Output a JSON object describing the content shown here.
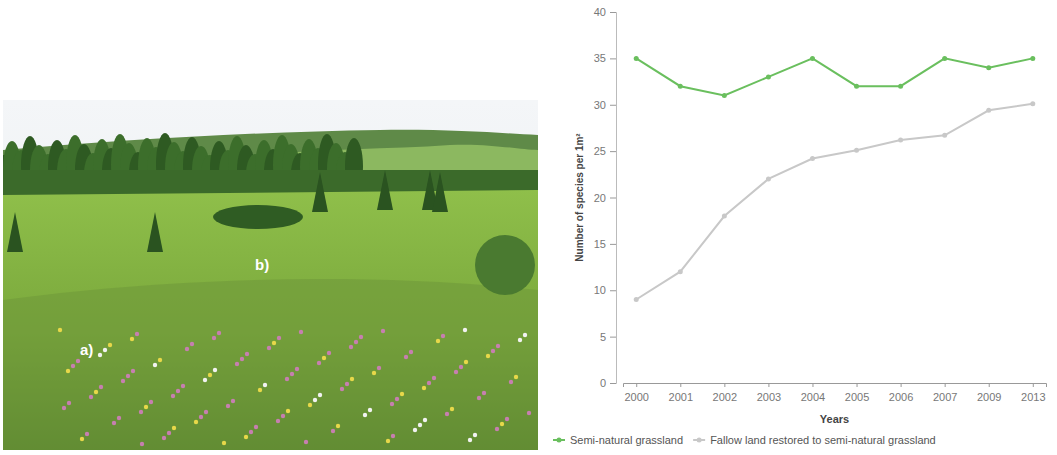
{
  "photo_labels": [
    "a)",
    "b)"
  ],
  "chart_data": {
    "type": "line",
    "x_label": "Years",
    "y_label": "Number of species per 1m²",
    "categories": [
      "2000",
      "2001",
      "2002",
      "2003",
      "2004",
      "2005",
      "2006",
      "2007",
      "2009",
      "2013"
    ],
    "series": [
      {
        "name": "Semi-natural grassland",
        "color": "#6abf5e",
        "marker": "circle",
        "values": [
          35,
          32,
          31,
          33,
          35,
          32,
          32,
          35,
          34,
          35
        ]
      },
      {
        "name": "Fallow land restored to semi-natural grassland",
        "color": "#c8c8c8",
        "marker": "circle",
        "values": [
          9,
          12,
          18,
          22,
          24.2,
          25.1,
          26.2,
          26.7,
          29.4,
          30.1
        ]
      }
    ],
    "ylim": [
      0,
      40
    ],
    "yticks": [
      0,
      5,
      10,
      15,
      20,
      25,
      30,
      35,
      40
    ],
    "grid": false,
    "legend": "bottom"
  }
}
